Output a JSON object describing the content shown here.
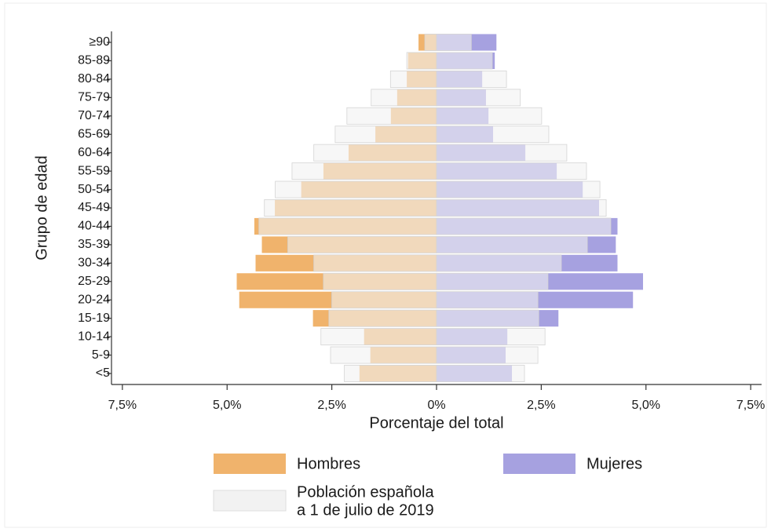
{
  "chart_data": {
    "type": "pyramid",
    "categories": [
      "≥90",
      "85-89",
      "80-84",
      "75-79",
      "70-74",
      "65-69",
      "60-64",
      "55-59",
      "50-54",
      "45-49",
      "40-44",
      "35-39",
      "30-34",
      "25-29",
      "20-24",
      "15-19",
      "10-14",
      "5-9",
      "<5"
    ],
    "y_label": "Grupo de edad",
    "x_label": "Porcentaje del total",
    "xlim": [
      -7.76,
      7.76
    ],
    "xticks": [
      {
        "value": -7.5,
        "label": "7,5%"
      },
      {
        "value": -5,
        "label": "5,0%"
      },
      {
        "value": -2.5,
        "label": "2,5%"
      },
      {
        "value": 0,
        "label": "0%"
      },
      {
        "value": 2.5,
        "label": "2,5%"
      },
      {
        "value": 5,
        "label": "5,0%"
      },
      {
        "value": 7.5,
        "label": "7,5%"
      }
    ],
    "series": [
      {
        "name": "Hombres",
        "color": "#f0b36c",
        "values": [
          -0.43,
          -0.68,
          -0.71,
          -0.94,
          -1.09,
          -1.46,
          -2.1,
          -2.7,
          -3.23,
          -3.86,
          -4.35,
          -4.17,
          -4.32,
          -4.77,
          -4.71,
          -2.95,
          -1.73,
          -1.58,
          -1.84
        ]
      },
      {
        "name": "Mujeres",
        "color": "#a6a1e0",
        "values": [
          1.43,
          1.39,
          1.09,
          1.18,
          1.24,
          1.35,
          2.12,
          2.87,
          3.49,
          3.88,
          4.32,
          4.28,
          4.32,
          4.93,
          4.69,
          2.91,
          1.69,
          1.65,
          1.8
        ]
      }
    ],
    "reference": {
      "name": [
        "Población española",
        "a 1 de julio de 2019"
      ],
      "color": "#f2f2f2",
      "left": [
        -0.28,
        -0.71,
        -1.1,
        -1.56,
        -2.14,
        -2.42,
        -2.93,
        -3.45,
        -3.85,
        -4.11,
        -4.24,
        -3.55,
        -2.93,
        -2.7,
        -2.5,
        -2.57,
        -2.76,
        -2.53,
        -2.2
      ],
      "right": [
        0.83,
        1.33,
        1.67,
        2.0,
        2.51,
        2.68,
        3.11,
        3.58,
        3.9,
        4.05,
        4.16,
        3.6,
        2.98,
        2.66,
        2.42,
        2.44,
        2.59,
        2.42,
        2.1
      ]
    }
  }
}
